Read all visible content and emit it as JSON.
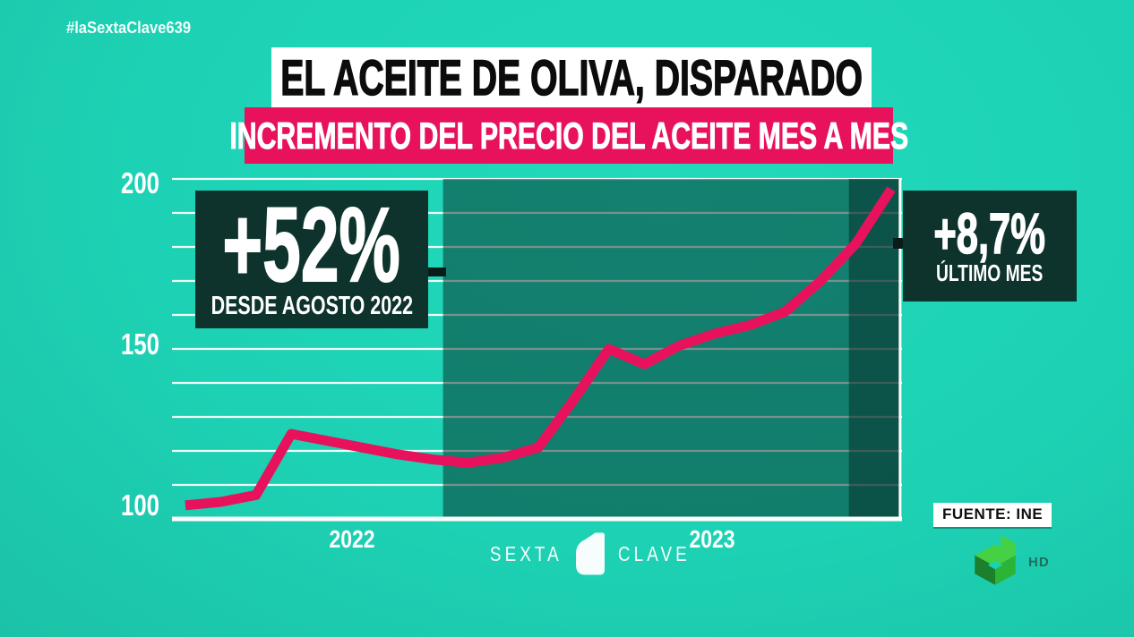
{
  "hashtag": "#laSextaClave639",
  "header": {
    "title": "EL ACEITE DE OLIVA, DISPARADO",
    "subtitle": "INCREMENTO DEL PRECIO DEL ACEITE MES A MES"
  },
  "callouts": {
    "since_august": {
      "value": "+52%",
      "label": "DESDE AGOSTO 2022"
    },
    "last_month": {
      "value": "+8,7%",
      "label": "ÚLTIMO MES"
    }
  },
  "source": {
    "label": "FUENTE: INE"
  },
  "watermark": {
    "left": "SEXTA",
    "right": "CLAVE"
  },
  "channel": {
    "badge": "HD"
  },
  "colors": {
    "background_teal": "#1dd2b4",
    "accent_pink": "#e8115c",
    "panel_dark_green": "#0e332c",
    "grid_white": "#ffffff",
    "band_fill": "rgba(7,48,42,0.52)",
    "last_band_fill": "rgba(6,42,37,0.50)",
    "logo_green_light": "#45d143",
    "logo_green_mid": "#2cb437",
    "logo_green_dark": "#1b7f2b",
    "hd_text": "#1e6e5e"
  },
  "chart_data": {
    "type": "line",
    "title": "EL ACEITE DE OLIVA, DISPARADO",
    "subtitle": "INCREMENTO DEL PRECIO DEL ACEITE MES A MES",
    "xlabel": "",
    "ylabel": "",
    "ylim": [
      97,
      201
    ],
    "grid": "on",
    "gridlines_every": 10,
    "y_ticks": [
      {
        "value": 200,
        "label": "200"
      },
      {
        "value": 150,
        "label": "150"
      },
      {
        "value": 100,
        "label": "100"
      }
    ],
    "x_ticks": [
      {
        "label": "2022",
        "index": 4.72
      },
      {
        "label": "2023",
        "index": 14.92
      }
    ],
    "values": [
      104,
      105,
      107,
      125,
      123,
      121,
      119,
      117.5,
      116.5,
      118,
      121,
      135,
      150,
      145.5,
      151,
      154.5,
      157,
      161,
      170,
      181,
      197
    ],
    "line_color": "#e8115c",
    "highlight_band": {
      "from_index": 7.3,
      "to_index": 20.25
    },
    "last_month_band": {
      "from_index": 18.8,
      "to_index": 20.25
    }
  }
}
